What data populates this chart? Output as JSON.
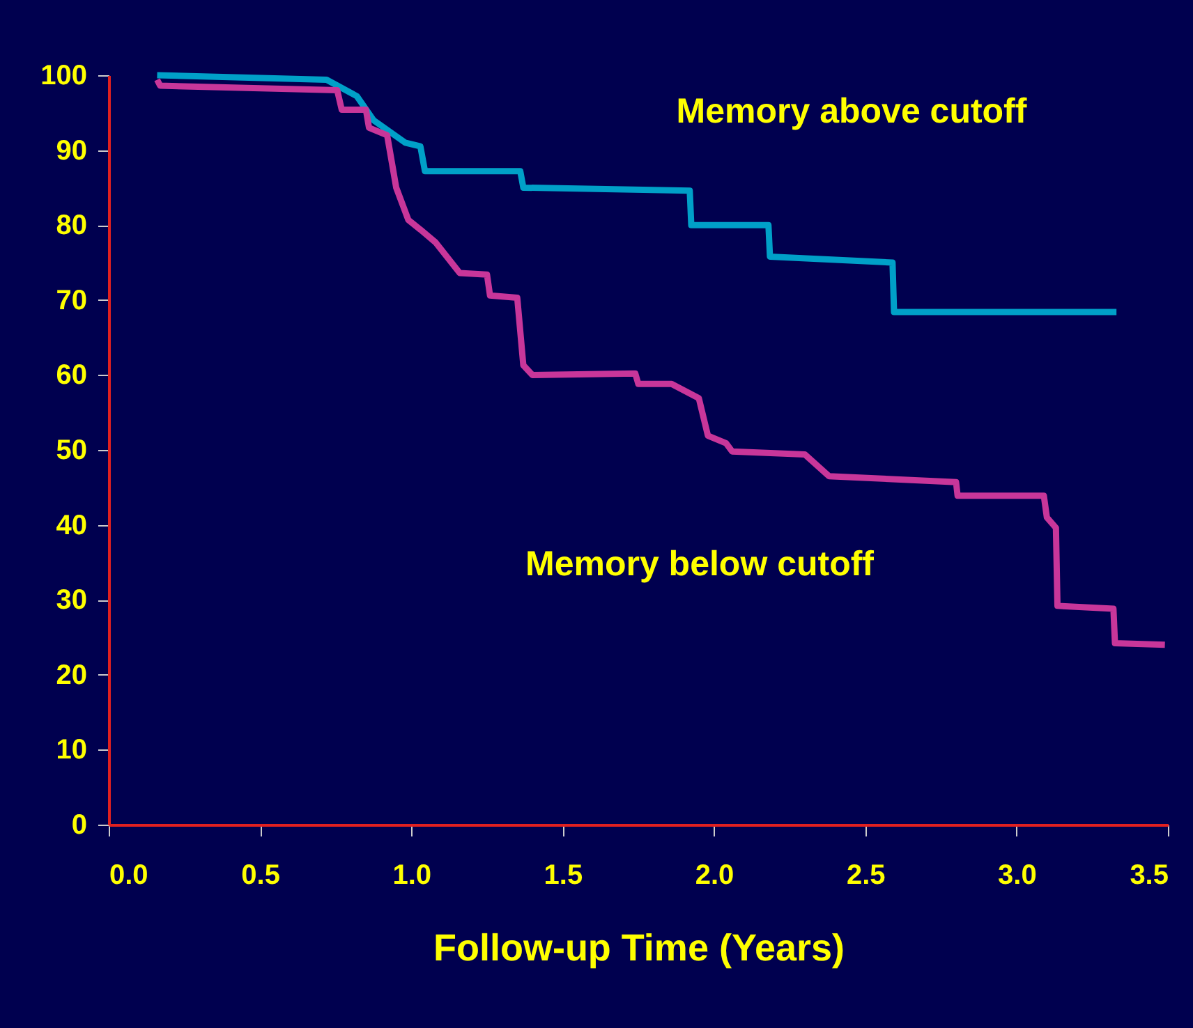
{
  "chart_data": {
    "type": "line",
    "xlabel": "Follow-up Time (Years)",
    "xlim": [
      0,
      3.5
    ],
    "ylim": [
      0,
      100
    ],
    "xticks": [
      {
        "value": 0,
        "label": "0.0"
      },
      {
        "value": 0.5,
        "label": "0.5"
      },
      {
        "value": 1,
        "label": "1.0"
      },
      {
        "value": 1.5,
        "label": "1.5"
      },
      {
        "value": 2,
        "label": "2.0"
      },
      {
        "value": 2.5,
        "label": "2.5"
      },
      {
        "value": 3,
        "label": "3.0"
      },
      {
        "value": 3.5,
        "label": "3.5"
      }
    ],
    "yticks": [
      0,
      10,
      20,
      30,
      40,
      50,
      60,
      70,
      80,
      90,
      100
    ],
    "grid": false,
    "marker": "none",
    "line_style": "solid",
    "annotations": [
      "Memory above cutoff",
      "Memory below cutoff"
    ],
    "series": [
      {
        "color": "#00a0c8",
        "x": [
          0.16,
          0.72,
          0.82,
          0.875,
          0.98,
          1.03,
          1.045,
          1.36,
          1.37,
          1.92,
          1.925,
          2.18,
          2.185,
          2.59,
          2.595,
          3.33
        ],
        "values": [
          100,
          99.4,
          97.2,
          94,
          91,
          90.5,
          87.2,
          87.2,
          85,
          84.6,
          80,
          80,
          75.8,
          75,
          68.4,
          68.4
        ]
      },
      {
        "color": "#c8369a",
        "x": [
          0.16,
          0.17,
          0.755,
          0.77,
          0.85,
          0.86,
          0.92,
          0.95,
          0.99,
          1.03,
          1.08,
          1.16,
          1.25,
          1.26,
          1.35,
          1.37,
          1.4,
          1.74,
          1.75,
          1.86,
          1.95,
          1.98,
          2.04,
          2.06,
          2.3,
          2.38,
          2.8,
          2.805,
          3.09,
          3.1,
          3.13,
          3.135,
          3.32,
          3.325,
          3.49
        ],
        "values": [
          99.4,
          98.6,
          98,
          95.4,
          95.4,
          93,
          92,
          85,
          80.7,
          79.4,
          77.7,
          73.6,
          73.4,
          70.6,
          70.3,
          61.3,
          60,
          60.2,
          58.8,
          58.8,
          56.9,
          51.9,
          50.9,
          49.8,
          49.4,
          46.5,
          45.7,
          43.9,
          43.9,
          41,
          39.6,
          29.2,
          28.8,
          24.2,
          24
        ]
      }
    ]
  }
}
